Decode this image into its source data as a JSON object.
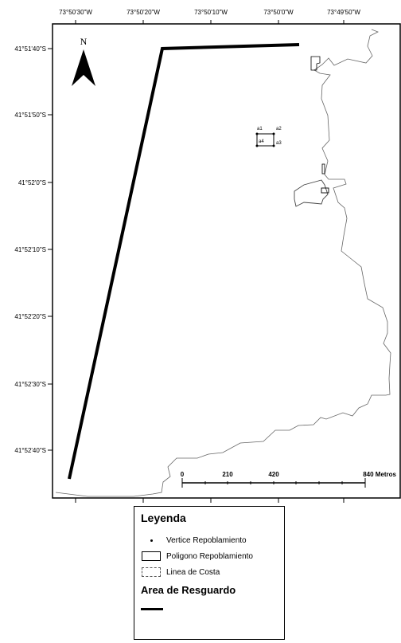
{
  "map": {
    "north_label": "N",
    "lon_ticks": [
      "73°50'30\"W",
      "73°50'20\"W",
      "73°50'10\"W",
      "73°50'0\"W",
      "73°49'50\"W"
    ],
    "lat_ticks": [
      "41°51'40\"S",
      "41°51'50\"S",
      "41°52'0\"S",
      "41°52'10\"S",
      "41°52'20\"S",
      "41°52'30\"S",
      "41°52'40\"S"
    ],
    "vertices": [
      "a1",
      "a2",
      "a3",
      "a4"
    ],
    "scale": {
      "labels": [
        "0",
        "210",
        "420",
        "840 Metros"
      ]
    }
  },
  "legend": {
    "title": "Leyenda",
    "items": [
      {
        "label": "Vertice Repoblamiento",
        "symbol": "dot"
      },
      {
        "label": "Poligono Repoblamiento",
        "symbol": "box"
      },
      {
        "label": "Linea de Costa",
        "symbol": "dashed-box"
      }
    ],
    "subtitle": "Area de Resguardo"
  }
}
